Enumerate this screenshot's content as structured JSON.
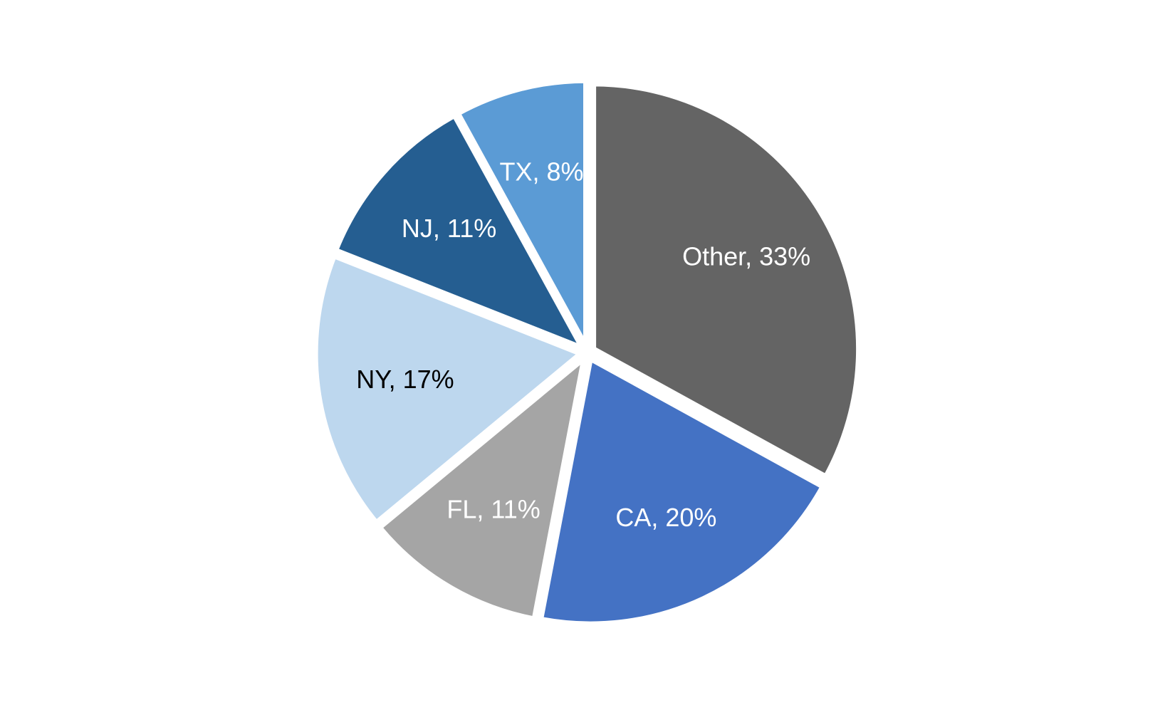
{
  "chart_data": {
    "type": "pie",
    "start": "12 o'clock",
    "direction": "clockwise",
    "slices": [
      {
        "category": "Other",
        "value": 33,
        "label": "Other, 33%",
        "color": "#646464",
        "label_color": "#ffffff"
      },
      {
        "category": "CA",
        "value": 20,
        "label": "CA, 20%",
        "color": "#4472c4",
        "label_color": "#ffffff"
      },
      {
        "category": "FL",
        "value": 11,
        "label": "FL, 11%",
        "color": "#a5a5a5",
        "label_color": "#ffffff"
      },
      {
        "category": "NY",
        "value": 17,
        "label": "NY, 17%",
        "color": "#bdd7ee",
        "label_color": "#000000"
      },
      {
        "category": "NJ",
        "value": 11,
        "label": "NJ, 11%",
        "color": "#255e91",
        "label_color": "#ffffff"
      },
      {
        "category": "TX",
        "value": 8,
        "label": "TX, 8%",
        "color": "#5b9bd5",
        "label_color": "#ffffff"
      }
    ]
  }
}
